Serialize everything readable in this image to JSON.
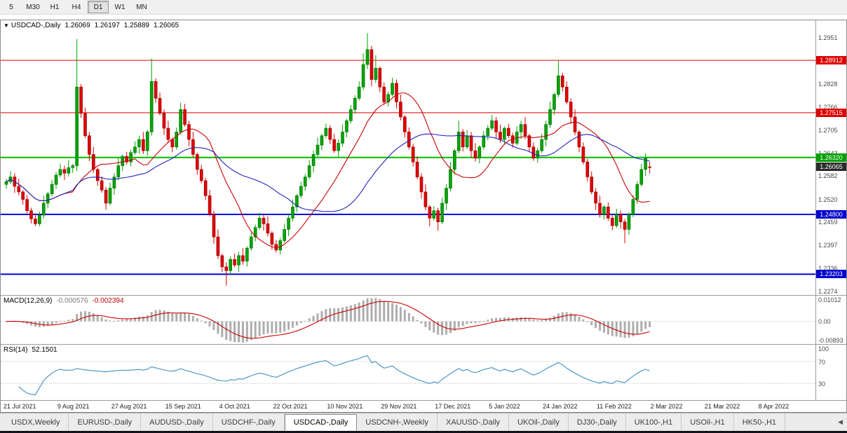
{
  "icons": {
    "chart_menu": "▼",
    "tab_scroll_left": "◀"
  },
  "toolbar": {
    "active_period": "D1",
    "periods": [
      {
        "label": "5"
      },
      {
        "label": "M30"
      },
      {
        "label": "H1"
      },
      {
        "label": "H4"
      },
      {
        "label": "D1"
      },
      {
        "label": "W1"
      },
      {
        "label": "MN"
      }
    ]
  },
  "chart": {
    "title": {
      "symbol": "USDCAD-,Daily",
      "open": "1.26069",
      "high": "1.26197",
      "low": "1.25889",
      "close": "1.26065"
    },
    "price_axis": {
      "labels": [
        "1.2951",
        "1.2828",
        "1.2766",
        "1.2705",
        "1.2643",
        "1.2582",
        "1.2520",
        "1.2459",
        "1.2397",
        "1.2336",
        "1.2274"
      ],
      "badges": [
        {
          "text": "1.28912",
          "price": 1.28912,
          "bg": "#dd0000"
        },
        {
          "text": "1.27515",
          "price": 1.27515,
          "bg": "#dd0000"
        },
        {
          "text": "1.26320",
          "price": 1.2632,
          "bg": "#00a000"
        },
        {
          "text": "1.26065",
          "price": 1.26065,
          "bg": "#2b2b2b"
        },
        {
          "text": "1.24800",
          "price": 1.248,
          "bg": "#0000cc"
        },
        {
          "text": "1.23203",
          "price": 1.23203,
          "bg": "#0000cc"
        }
      ]
    },
    "hlines": [
      {
        "price": 1.28912,
        "color": "#e00000",
        "width": 1
      },
      {
        "price": 1.27515,
        "color": "#e00000",
        "width": 1
      },
      {
        "price": 1.2632,
        "color": "#00bb00",
        "width": 2
      },
      {
        "price": 1.248,
        "color": "#0000e0",
        "width": 2
      },
      {
        "price": 1.23203,
        "color": "#0000e0",
        "width": 2
      }
    ],
    "time_axis": [
      "21 Jul 2021",
      "9 Aug 2021",
      "27 Aug 2021",
      "15 Sep 2021",
      "4 Oct 2021",
      "22 Oct 2021",
      "10 Nov 2021",
      "29 Nov 2021",
      "17 Dec 2021",
      "5 Jan 2022",
      "24 Jan 2022",
      "11 Feb 2022",
      "2 Mar 2022",
      "21 Mar 2022",
      "8 Apr 2022"
    ]
  },
  "macd": {
    "label": "MACD(12,26,9)",
    "value": "-0.000576",
    "signal": "-0.002394",
    "axis": [
      "0.01012",
      "0.00",
      "-0.00893"
    ],
    "range": [
      -0.00893,
      0.01012
    ],
    "histogram_color": "#adadad",
    "signal_color": "#cc0000"
  },
  "rsi": {
    "label": "RSI(14)",
    "value": "52.1501",
    "axis": [
      "100",
      "70",
      "30"
    ],
    "levels": [
      70,
      30
    ],
    "range": [
      0,
      100
    ],
    "line_color": "#3f8fc4"
  },
  "tabs": {
    "active": "USDCAD-,Daily",
    "items": [
      {
        "label": "USDX,Weekly"
      },
      {
        "label": "EURUSD-,Daily"
      },
      {
        "label": "AUDUSD-,Daily"
      },
      {
        "label": "USDCHF-,Daily"
      },
      {
        "label": "USDCAD-,Daily"
      },
      {
        "label": "USDCNH-,Weekly"
      },
      {
        "label": "XAUUSD-,Daily"
      },
      {
        "label": "UKOil-,Daily"
      },
      {
        "label": "DJ30-,Daily"
      },
      {
        "label": "UK100-,H1"
      },
      {
        "label": "USOil-,H1"
      },
      {
        "label": "HK50-,H1"
      }
    ]
  },
  "chart_data": {
    "type": "candlestick",
    "symbol": "USDCAD",
    "timeframe": "Daily",
    "price_range": [
      1.2265,
      1.2998
    ],
    "colors": {
      "up": "#00a400",
      "down": "#e00000",
      "up_border": "#006a00",
      "down_border": "#8f0000"
    },
    "overlays": [
      {
        "name": "ma-fast",
        "type": "sma",
        "period": 15,
        "color": "#cc0000"
      },
      {
        "name": "ma-slow",
        "type": "sma",
        "period": 34,
        "color": "#2424bc"
      }
    ],
    "candles": [
      [
        1.256,
        1.2575,
        1.2548,
        1.2567
      ],
      [
        1.2567,
        1.2595,
        1.2561,
        1.258
      ],
      [
        1.258,
        1.259,
        1.2537,
        1.2555
      ],
      [
        1.2555,
        1.2575,
        1.2531,
        1.254
      ],
      [
        1.254,
        1.2545,
        1.2506,
        1.252
      ],
      [
        1.252,
        1.2532,
        1.2483,
        1.249
      ],
      [
        1.249,
        1.2498,
        1.2456,
        1.2468
      ],
      [
        1.2468,
        1.2483,
        1.2449,
        1.2455
      ],
      [
        1.2455,
        1.2488,
        1.2448,
        1.2478
      ],
      [
        1.2478,
        1.253,
        1.2469,
        1.251
      ],
      [
        1.251,
        1.254,
        1.2496,
        1.2535
      ],
      [
        1.2535,
        1.2572,
        1.2528,
        1.256
      ],
      [
        1.256,
        1.2593,
        1.2548,
        1.2585
      ],
      [
        1.2585,
        1.2615,
        1.2579,
        1.26
      ],
      [
        1.26,
        1.261,
        1.2572,
        1.259
      ],
      [
        1.259,
        1.2625,
        1.2581,
        1.2605
      ],
      [
        1.2605,
        1.2615,
        1.2591,
        1.261
      ],
      [
        1.261,
        1.2948,
        1.2596,
        1.282
      ],
      [
        1.282,
        1.2828,
        1.2738,
        1.275
      ],
      [
        1.275,
        1.2765,
        1.2684,
        1.269
      ],
      [
        1.269,
        1.27,
        1.2622,
        1.264
      ],
      [
        1.264,
        1.266,
        1.2591,
        1.26
      ],
      [
        1.26,
        1.2605,
        1.2556,
        1.257
      ],
      [
        1.257,
        1.2582,
        1.2538,
        1.2545
      ],
      [
        1.2545,
        1.2553,
        1.2493,
        1.251
      ],
      [
        1.251,
        1.2565,
        1.2504,
        1.255
      ],
      [
        1.255,
        1.259,
        1.2532,
        1.258
      ],
      [
        1.258,
        1.263,
        1.2571,
        1.261
      ],
      [
        1.261,
        1.264,
        1.2596,
        1.2635
      ],
      [
        1.2635,
        1.2647,
        1.2613,
        1.262
      ],
      [
        1.262,
        1.2653,
        1.2608,
        1.2645
      ],
      [
        1.2645,
        1.2675,
        1.2639,
        1.266
      ],
      [
        1.266,
        1.269,
        1.2642,
        1.268
      ],
      [
        1.268,
        1.27,
        1.2641,
        1.265
      ],
      [
        1.265,
        1.2705,
        1.2636,
        1.27
      ],
      [
        1.27,
        1.2896,
        1.269,
        1.2835
      ],
      [
        1.2835,
        1.2843,
        1.2778,
        1.279
      ],
      [
        1.279,
        1.2805,
        1.2744,
        1.275
      ],
      [
        1.275,
        1.276,
        1.2692,
        1.271
      ],
      [
        1.271,
        1.273,
        1.2671,
        1.268
      ],
      [
        1.268,
        1.2685,
        1.2646,
        1.266
      ],
      [
        1.266,
        1.2712,
        1.2653,
        1.27
      ],
      [
        1.27,
        1.2778,
        1.2693,
        1.276
      ],
      [
        1.276,
        1.2775,
        1.2714,
        1.272
      ],
      [
        1.272,
        1.273,
        1.2662,
        1.268
      ],
      [
        1.268,
        1.27,
        1.2631,
        1.264
      ],
      [
        1.264,
        1.2645,
        1.2586,
        1.26
      ],
      [
        1.26,
        1.2612,
        1.2563,
        1.257
      ],
      [
        1.257,
        1.2578,
        1.2518,
        1.253
      ],
      [
        1.253,
        1.2545,
        1.2474,
        1.248
      ],
      [
        1.248,
        1.249,
        1.2402,
        1.242
      ],
      [
        1.242,
        1.244,
        1.2361,
        1.237
      ],
      [
        1.237,
        1.2375,
        1.2326,
        1.234
      ],
      [
        1.234,
        1.2352,
        1.229,
        1.233
      ],
      [
        1.233,
        1.2368,
        1.2318,
        1.236
      ],
      [
        1.236,
        1.2375,
        1.2339,
        1.2345
      ],
      [
        1.2345,
        1.238,
        1.2327,
        1.237
      ],
      [
        1.237,
        1.239,
        1.2346,
        1.2355
      ],
      [
        1.2355,
        1.2395,
        1.2341,
        1.239
      ],
      [
        1.239,
        1.2432,
        1.2383,
        1.242
      ],
      [
        1.242,
        1.2453,
        1.2408,
        1.2445
      ],
      [
        1.2445,
        1.2485,
        1.2439,
        1.247
      ],
      [
        1.247,
        1.248,
        1.2437,
        1.2455
      ],
      [
        1.2455,
        1.2475,
        1.2421,
        1.243
      ],
      [
        1.243,
        1.2435,
        1.2386,
        1.24
      ],
      [
        1.24,
        1.2412,
        1.2378,
        1.2385
      ],
      [
        1.2385,
        1.2418,
        1.2373,
        1.241
      ],
      [
        1.241,
        1.2455,
        1.2404,
        1.244
      ],
      [
        1.244,
        1.248,
        1.2422,
        1.247
      ],
      [
        1.247,
        1.252,
        1.2461,
        1.25
      ],
      [
        1.25,
        1.2535,
        1.2486,
        1.253
      ],
      [
        1.253,
        1.2567,
        1.2523,
        1.2555
      ],
      [
        1.2555,
        1.2588,
        1.2543,
        1.258
      ],
      [
        1.258,
        1.2625,
        1.2574,
        1.261
      ],
      [
        1.261,
        1.265,
        1.2592,
        1.264
      ],
      [
        1.264,
        1.2685,
        1.2631,
        1.2665
      ],
      [
        1.2665,
        1.2695,
        1.2651,
        1.269
      ],
      [
        1.269,
        1.2722,
        1.2683,
        1.271
      ],
      [
        1.271,
        1.2718,
        1.2668,
        1.268
      ],
      [
        1.268,
        1.2695,
        1.2644,
        1.265
      ],
      [
        1.265,
        1.268,
        1.2632,
        1.267
      ],
      [
        1.267,
        1.272,
        1.2661,
        1.27
      ],
      [
        1.27,
        1.2735,
        1.2686,
        1.273
      ],
      [
        1.273,
        1.2772,
        1.2723,
        1.276
      ],
      [
        1.276,
        1.2798,
        1.2748,
        1.279
      ],
      [
        1.279,
        1.2835,
        1.2784,
        1.282
      ],
      [
        1.282,
        1.291,
        1.2812,
        1.288
      ],
      [
        1.288,
        1.2964,
        1.2868,
        1.292
      ],
      [
        1.292,
        1.293,
        1.2822,
        1.284
      ],
      [
        1.284,
        1.2905,
        1.2831,
        1.287
      ],
      [
        1.287,
        1.2875,
        1.2806,
        1.282
      ],
      [
        1.282,
        1.2832,
        1.2773,
        1.278
      ],
      [
        1.278,
        1.2808,
        1.2768,
        1.28
      ],
      [
        1.28,
        1.2845,
        1.2794,
        1.283
      ],
      [
        1.283,
        1.284,
        1.2762,
        1.278
      ],
      [
        1.278,
        1.28,
        1.2731,
        1.274
      ],
      [
        1.274,
        1.2745,
        1.2686,
        1.27
      ],
      [
        1.27,
        1.2712,
        1.2653,
        1.266
      ],
      [
        1.266,
        1.2668,
        1.2608,
        1.262
      ],
      [
        1.262,
        1.2635,
        1.2574,
        1.258
      ],
      [
        1.258,
        1.259,
        1.2522,
        1.254
      ],
      [
        1.254,
        1.256,
        1.2491,
        1.25
      ],
      [
        1.25,
        1.2505,
        1.2448,
        1.247
      ],
      [
        1.247,
        1.2502,
        1.2463,
        1.249
      ],
      [
        1.249,
        1.2498,
        1.2437,
        1.246
      ],
      [
        1.246,
        1.2525,
        1.2454,
        1.251
      ],
      [
        1.251,
        1.256,
        1.2492,
        1.255
      ],
      [
        1.255,
        1.262,
        1.2541,
        1.26
      ],
      [
        1.26,
        1.2655,
        1.2586,
        1.265
      ],
      [
        1.265,
        1.273,
        1.2643,
        1.27
      ],
      [
        1.27,
        1.2708,
        1.2648,
        1.266
      ],
      [
        1.266,
        1.2705,
        1.2654,
        1.269
      ],
      [
        1.269,
        1.27,
        1.2632,
        1.265
      ],
      [
        1.265,
        1.267,
        1.2621,
        1.263
      ],
      [
        1.263,
        1.2665,
        1.2616,
        1.266
      ],
      [
        1.266,
        1.2702,
        1.2653,
        1.269
      ],
      [
        1.269,
        1.2718,
        1.2678,
        1.271
      ],
      [
        1.271,
        1.2745,
        1.2704,
        1.273
      ],
      [
        1.273,
        1.274,
        1.2682,
        1.27
      ],
      [
        1.27,
        1.272,
        1.2671,
        1.268
      ],
      [
        1.268,
        1.2715,
        1.2666,
        1.271
      ],
      [
        1.271,
        1.2722,
        1.2683,
        1.269
      ],
      [
        1.269,
        1.2698,
        1.2658,
        1.267
      ],
      [
        1.267,
        1.2715,
        1.2664,
        1.27
      ],
      [
        1.27,
        1.273,
        1.2682,
        1.272
      ],
      [
        1.272,
        1.274,
        1.2681,
        1.269
      ],
      [
        1.269,
        1.2695,
        1.2646,
        1.266
      ],
      [
        1.266,
        1.2672,
        1.2623,
        1.263
      ],
      [
        1.263,
        1.2658,
        1.2618,
        1.265
      ],
      [
        1.265,
        1.2695,
        1.2644,
        1.268
      ],
      [
        1.268,
        1.273,
        1.2662,
        1.272
      ],
      [
        1.272,
        1.278,
        1.2711,
        1.276
      ],
      [
        1.276,
        1.2805,
        1.2746,
        1.28
      ],
      [
        1.28,
        1.289,
        1.2793,
        1.285
      ],
      [
        1.285,
        1.2858,
        1.2808,
        1.282
      ],
      [
        1.282,
        1.2835,
        1.2774,
        1.278
      ],
      [
        1.278,
        1.279,
        1.2722,
        1.274
      ],
      [
        1.274,
        1.276,
        1.2691,
        1.27
      ],
      [
        1.27,
        1.2705,
        1.2646,
        1.266
      ],
      [
        1.266,
        1.2672,
        1.2613,
        1.262
      ],
      [
        1.262,
        1.2628,
        1.2568,
        1.258
      ],
      [
        1.258,
        1.2595,
        1.2534,
        1.254
      ],
      [
        1.254,
        1.255,
        1.2492,
        1.251
      ],
      [
        1.251,
        1.253,
        1.2471,
        1.248
      ],
      [
        1.248,
        1.2505,
        1.2466,
        1.25
      ],
      [
        1.25,
        1.2512,
        1.2463,
        1.247
      ],
      [
        1.247,
        1.2478,
        1.2438,
        1.245
      ],
      [
        1.245,
        1.2495,
        1.2444,
        1.248
      ],
      [
        1.248,
        1.249,
        1.2442,
        1.246
      ],
      [
        1.246,
        1.2468,
        1.2403,
        1.244
      ],
      [
        1.244,
        1.2485,
        1.2426,
        1.248
      ],
      [
        1.248,
        1.2532,
        1.2473,
        1.252
      ],
      [
        1.252,
        1.2568,
        1.2508,
        1.256
      ],
      [
        1.256,
        1.2615,
        1.2554,
        1.26
      ],
      [
        1.26,
        1.2643,
        1.2582,
        1.263
      ],
      [
        1.26069,
        1.26197,
        1.25889,
        1.26065
      ]
    ]
  }
}
